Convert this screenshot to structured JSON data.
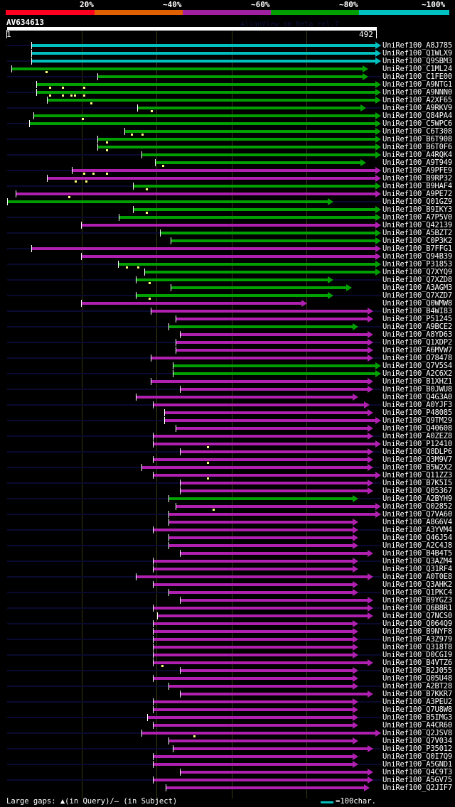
{
  "identity_scale": {
    "labels": [
      "20%",
      "~40%",
      "~60%",
      "~80%",
      "~100%"
    ],
    "colors": [
      "#ff0020",
      "#e06000",
      "#a020a0",
      "#00a000",
      "#00c0c0"
    ]
  },
  "query": {
    "name": "AV634613",
    "start_label": "1",
    "end_label": "492",
    "length": 492
  },
  "credit": "AlignView.pm Beta rel.7",
  "color_map": {
    "c": "#00c0c0",
    "g": "#00a000",
    "m": "#b020b0"
  },
  "hits": [
    {
      "id": "UniRef100_A8J785",
      "s": 33,
      "e": 492,
      "c": "c",
      "L": 1,
      "R": 1
    },
    {
      "id": "UniRef100_Q1WLX9",
      "s": 33,
      "e": 492,
      "c": "c",
      "L": 0,
      "R": 1
    },
    {
      "id": "UniRef100_Q9SBM3",
      "s": 33,
      "e": 492,
      "c": "c",
      "L": 1,
      "R": 1
    },
    {
      "id": "UniRef100_C1ML24",
      "s": 7,
      "e": 475,
      "c": "g",
      "L": 0,
      "R": 0,
      "gaps": [
        53
      ]
    },
    {
      "id": "UniRef100_C1FE00",
      "s": 121,
      "e": 475,
      "c": "g",
      "L": 1,
      "R": 1
    },
    {
      "id": "UniRef100_A9NTG1",
      "s": 40,
      "e": 492,
      "c": "g",
      "L": 0,
      "R": 0,
      "gaps": [
        58,
        75,
        103
      ]
    },
    {
      "id": "UniRef100_A9NNN0",
      "s": 40,
      "e": 492,
      "c": "g",
      "L": 1,
      "R": 1,
      "gaps": [
        58,
        75,
        86,
        91,
        103
      ]
    },
    {
      "id": "UniRef100_A2XF65",
      "s": 54,
      "e": 492,
      "c": "g",
      "L": 0,
      "R": 0,
      "gaps": [
        113
      ]
    },
    {
      "id": "UniRef100_A9RKV9",
      "s": 174,
      "e": 472,
      "c": "g",
      "L": 1,
      "R": 1,
      "gaps": [
        193
      ]
    },
    {
      "id": "UniRef100_Q84PA4",
      "s": 36,
      "e": 492,
      "c": "g",
      "L": 0,
      "R": 0,
      "gaps": [
        101
      ]
    },
    {
      "id": "UniRef100_C5WPC6",
      "s": 30,
      "e": 492,
      "c": "g",
      "L": 1,
      "R": 1
    },
    {
      "id": "UniRef100_C6T308",
      "s": 157,
      "e": 492,
      "c": "g",
      "L": 0,
      "R": 0,
      "gaps": [
        167,
        181
      ]
    },
    {
      "id": "UniRef100_B6T908",
      "s": 121,
      "e": 492,
      "c": "g",
      "L": 1,
      "R": 1,
      "gaps": [
        133
      ]
    },
    {
      "id": "UniRef100_B6T0F6",
      "s": 121,
      "e": 492,
      "c": "g",
      "L": 0,
      "R": 0,
      "gaps": [
        133
      ]
    },
    {
      "id": "UniRef100_A4RQK4",
      "s": 180,
      "e": 492,
      "c": "g",
      "L": 1,
      "R": 1
    },
    {
      "id": "UniRef100_A9T949",
      "s": 198,
      "e": 472,
      "c": "g",
      "L": 0,
      "R": 0,
      "gaps": [
        208
      ]
    },
    {
      "id": "UniRef100_A9PFE9",
      "s": 87,
      "e": 492,
      "c": "m",
      "L": 1,
      "R": 1,
      "gaps": [
        103,
        115,
        133
      ]
    },
    {
      "id": "UniRef100_B9RP32",
      "s": 54,
      "e": 492,
      "c": "m",
      "L": 0,
      "R": 0,
      "gaps": [
        92,
        106
      ]
    },
    {
      "id": "UniRef100_B9HAF4",
      "s": 168,
      "e": 492,
      "c": "g",
      "L": 1,
      "R": 1,
      "gaps": [
        186
      ]
    },
    {
      "id": "UniRef100_A9PE72",
      "s": 12,
      "e": 492,
      "c": "m",
      "L": 0,
      "R": 0,
      "gaps": [
        83
      ]
    },
    {
      "id": "UniRef100_Q01GZ9",
      "s": 1,
      "e": 429,
      "c": "g",
      "L": 0,
      "R": 1
    },
    {
      "id": "UniRef100_B9IKY3",
      "s": 168,
      "e": 492,
      "c": "g",
      "L": 0,
      "R": 0,
      "gaps": [
        186
      ]
    },
    {
      "id": "UniRef100_A7P5V0",
      "s": 150,
      "e": 492,
      "c": "g",
      "L": 1,
      "R": 1
    },
    {
      "id": "UniRef100_Q42139",
      "s": 99,
      "e": 492,
      "c": "m",
      "L": 0,
      "R": 0
    },
    {
      "id": "UniRef100_A5BZT2",
      "s": 204,
      "e": 492,
      "c": "g",
      "L": 1,
      "R": 1
    },
    {
      "id": "UniRef100_C0P3K2",
      "s": 219,
      "e": 492,
      "c": "g",
      "L": 0,
      "R": 0
    },
    {
      "id": "UniRef100_B7FFG1",
      "s": 33,
      "e": 492,
      "c": "m",
      "L": 1,
      "R": 1
    },
    {
      "id": "UniRef100_Q94B39",
      "s": 99,
      "e": 492,
      "c": "m",
      "L": 0,
      "R": 0
    },
    {
      "id": "UniRef100_P31853",
      "s": 149,
      "e": 492,
      "c": "g",
      "L": 1,
      "R": 1,
      "gaps": [
        160,
        175
      ]
    },
    {
      "id": "UniRef100_Q7XYQ9",
      "s": 184,
      "e": 492,
      "c": "g",
      "L": 0,
      "R": 0
    },
    {
      "id": "UniRef100_Q7XZD8",
      "s": 172,
      "e": 429,
      "c": "g",
      "L": 1,
      "R": 1,
      "gaps": [
        190
      ]
    },
    {
      "id": "UniRef100_A3AGM3",
      "s": 219,
      "e": 453,
      "c": "g",
      "L": 0,
      "R": 0
    },
    {
      "id": "UniRef100_Q7XZD7",
      "s": 172,
      "e": 429,
      "c": "g",
      "L": 1,
      "R": 1,
      "gaps": [
        190
      ]
    },
    {
      "id": "UniRef100_Q0WMW8",
      "s": 99,
      "e": 394,
      "c": "m",
      "L": 0,
      "R": 0
    },
    {
      "id": "UniRef100_B4WI83",
      "s": 192,
      "e": 482,
      "c": "m",
      "L": 1,
      "R": 1
    },
    {
      "id": "UniRef100_P51245",
      "s": 225,
      "e": 482,
      "c": "m",
      "L": 0,
      "R": 0
    },
    {
      "id": "UniRef100_A9BCE2",
      "s": 216,
      "e": 462,
      "c": "g",
      "L": 1,
      "R": 1
    },
    {
      "id": "UniRef100_A8YD63",
      "s": 231,
      "e": 482,
      "c": "m",
      "L": 0,
      "R": 0
    },
    {
      "id": "UniRef100_Q1XDP2",
      "s": 225,
      "e": 482,
      "c": "m",
      "L": 1,
      "R": 1
    },
    {
      "id": "UniRef100_A6MVW7",
      "s": 225,
      "e": 482,
      "c": "m",
      "L": 0,
      "R": 0
    },
    {
      "id": "UniRef100_O78478",
      "s": 192,
      "e": 482,
      "c": "m",
      "L": 1,
      "R": 1
    },
    {
      "id": "UniRef100_Q7V5S4",
      "s": 221,
      "e": 492,
      "c": "g",
      "L": 0,
      "R": 0
    },
    {
      "id": "UniRef100_A2C6X2",
      "s": 221,
      "e": 492,
      "c": "g",
      "L": 1,
      "R": 1
    },
    {
      "id": "UniRef100_B1XHZ1",
      "s": 192,
      "e": 482,
      "c": "m",
      "L": 0,
      "R": 0
    },
    {
      "id": "UniRef100_B0JWU8",
      "s": 231,
      "e": 482,
      "c": "m",
      "L": 1,
      "R": 1
    },
    {
      "id": "UniRef100_Q4G3A0",
      "s": 172,
      "e": 462,
      "c": "m",
      "L": 0,
      "R": 0
    },
    {
      "id": "UniRef100_A0YJF3",
      "s": 195,
      "e": 477,
      "c": "m",
      "L": 1,
      "R": 1
    },
    {
      "id": "UniRef100_P48085",
      "s": 210,
      "e": 482,
      "c": "m",
      "L": 0,
      "R": 0
    },
    {
      "id": "UniRef100_Q9TM29",
      "s": 210,
      "e": 492,
      "c": "m",
      "L": 1,
      "R": 1
    },
    {
      "id": "UniRef100_Q40608",
      "s": 225,
      "e": 482,
      "c": "m",
      "L": 0,
      "R": 0
    },
    {
      "id": "UniRef100_A0ZEZ8",
      "s": 195,
      "e": 482,
      "c": "m",
      "L": 1,
      "R": 1
    },
    {
      "id": "UniRef100_P12410",
      "s": 195,
      "e": 492,
      "c": "m",
      "L": 0,
      "R": 0,
      "gaps": [
        268
      ]
    },
    {
      "id": "UniRef100_Q8DLP6",
      "s": 231,
      "e": 482,
      "c": "m",
      "L": 1,
      "R": 1
    },
    {
      "id": "UniRef100_Q3M9V7",
      "s": 195,
      "e": 482,
      "c": "m",
      "L": 0,
      "R": 0,
      "gaps": [
        268
      ]
    },
    {
      "id": "UniRef100_B5W2X2",
      "s": 180,
      "e": 482,
      "c": "m",
      "L": 1,
      "R": 1
    },
    {
      "id": "UniRef100_Q11ZZ3",
      "s": 195,
      "e": 492,
      "c": "m",
      "L": 0,
      "R": 0,
      "gaps": [
        268
      ]
    },
    {
      "id": "UniRef100_B7K5I5",
      "s": 231,
      "e": 482,
      "c": "m",
      "L": 1,
      "R": 1
    },
    {
      "id": "UniRef100_Q05367",
      "s": 231,
      "e": 482,
      "c": "m",
      "L": 0,
      "R": 0
    },
    {
      "id": "UniRef100_A2BYH9",
      "s": 216,
      "e": 462,
      "c": "g",
      "L": 1,
      "R": 1
    },
    {
      "id": "UniRef100_Q02852",
      "s": 225,
      "e": 492,
      "c": "m",
      "L": 0,
      "R": 0,
      "gaps": [
        275
      ]
    },
    {
      "id": "UniRef100_Q7VA60",
      "s": 216,
      "e": 492,
      "c": "m",
      "L": 1,
      "R": 1
    },
    {
      "id": "UniRef100_A8G6V4",
      "s": 216,
      "e": 462,
      "c": "m",
      "L": 0,
      "R": 0
    },
    {
      "id": "UniRef100_A3YVM4",
      "s": 195,
      "e": 462,
      "c": "m",
      "L": 1,
      "R": 1
    },
    {
      "id": "UniRef100_Q46J54",
      "s": 216,
      "e": 462,
      "c": "m",
      "L": 0,
      "R": 0
    },
    {
      "id": "UniRef100_A2C4J8",
      "s": 216,
      "e": 462,
      "c": "m",
      "L": 1,
      "R": 1
    },
    {
      "id": "UniRef100_B4B4T5",
      "s": 231,
      "e": 482,
      "c": "m",
      "L": 0,
      "R": 0
    },
    {
      "id": "UniRef100_Q3AZM4",
      "s": 195,
      "e": 462,
      "c": "m",
      "L": 1,
      "R": 1
    },
    {
      "id": "UniRef100_Q31RF4",
      "s": 195,
      "e": 462,
      "c": "m",
      "L": 0,
      "R": 0
    },
    {
      "id": "UniRef100_A0T0E8",
      "s": 172,
      "e": 482,
      "c": "m",
      "L": 1,
      "R": 1
    },
    {
      "id": "UniRef100_Q3AHK2",
      "s": 195,
      "e": 462,
      "c": "m",
      "L": 0,
      "R": 0
    },
    {
      "id": "UniRef100_Q1PKC4",
      "s": 216,
      "e": 462,
      "c": "m",
      "L": 1,
      "R": 1
    },
    {
      "id": "UniRef100_B9YGZ3",
      "s": 231,
      "e": 482,
      "c": "m",
      "L": 0,
      "R": 0
    },
    {
      "id": "UniRef100_Q6B8R1",
      "s": 195,
      "e": 482,
      "c": "m",
      "L": 1,
      "R": 1
    },
    {
      "id": "UniRef100_Q7NCS0",
      "s": 201,
      "e": 482,
      "c": "m",
      "L": 0,
      "R": 0
    },
    {
      "id": "UniRef100_Q064Q9",
      "s": 195,
      "e": 462,
      "c": "m",
      "L": 1,
      "R": 1
    },
    {
      "id": "UniRef100_B9NYF8",
      "s": 195,
      "e": 462,
      "c": "m",
      "L": 0,
      "R": 0
    },
    {
      "id": "UniRef100_A3Z979",
      "s": 195,
      "e": 462,
      "c": "m",
      "L": 1,
      "R": 1
    },
    {
      "id": "UniRef100_Q318T8",
      "s": 195,
      "e": 462,
      "c": "m",
      "L": 0,
      "R": 0
    },
    {
      "id": "UniRef100_D0CGI9",
      "s": 195,
      "e": 462,
      "c": "m",
      "L": 1,
      "R": 1
    },
    {
      "id": "UniRef100_B4VTZ6",
      "s": 195,
      "e": 482,
      "c": "m",
      "L": 0,
      "R": 0,
      "gaps": [
        207
      ]
    },
    {
      "id": "UniRef100_B2J055",
      "s": 231,
      "e": 462,
      "c": "m",
      "L": 1,
      "R": 1
    },
    {
      "id": "UniRef100_Q05U48",
      "s": 195,
      "e": 462,
      "c": "m",
      "L": 0,
      "R": 0
    },
    {
      "id": "UniRef100_A2BT28",
      "s": 216,
      "e": 462,
      "c": "m",
      "L": 1,
      "R": 1
    },
    {
      "id": "UniRef100_B7KKR7",
      "s": 231,
      "e": 482,
      "c": "m",
      "L": 0,
      "R": 0
    },
    {
      "id": "UniRef100_A3PEU2",
      "s": 195,
      "e": 462,
      "c": "m",
      "L": 1,
      "R": 1
    },
    {
      "id": "UniRef100_Q7U8W8",
      "s": 195,
      "e": 462,
      "c": "m",
      "L": 0,
      "R": 0
    },
    {
      "id": "UniRef100_B5IMG3",
      "s": 187,
      "e": 462,
      "c": "m",
      "L": 1,
      "R": 1
    },
    {
      "id": "UniRef100_A4CR60",
      "s": 195,
      "e": 462,
      "c": "m",
      "L": 0,
      "R": 0
    },
    {
      "id": "UniRef100_Q2JSV8",
      "s": 180,
      "e": 492,
      "c": "m",
      "L": 1,
      "R": 1,
      "gaps": [
        250
      ]
    },
    {
      "id": "UniRef100_Q7V034",
      "s": 216,
      "e": 462,
      "c": "m",
      "L": 0,
      "R": 0
    },
    {
      "id": "UniRef100_P35012",
      "s": 221,
      "e": 482,
      "c": "m",
      "L": 1,
      "R": 1
    },
    {
      "id": "UniRef100_Q0I7Q9",
      "s": 195,
      "e": 462,
      "c": "m",
      "L": 0,
      "R": 0
    },
    {
      "id": "UniRef100_A5GND1",
      "s": 195,
      "e": 462,
      "c": "m",
      "L": 1,
      "R": 1
    },
    {
      "id": "UniRef100_Q4C9T3",
      "s": 231,
      "e": 482,
      "c": "m",
      "L": 0,
      "R": 0
    },
    {
      "id": "UniRef100_A5GV75",
      "s": 195,
      "e": 482,
      "c": "m",
      "L": 1,
      "R": 1
    },
    {
      "id": "UniRef100_Q2JIF7",
      "s": 212,
      "e": 477,
      "c": "m",
      "L": 0,
      "R": 0
    }
  ],
  "footer": {
    "gaps_text": "Large gaps: ▲(in Query)/— (in Subject)",
    "scale_text": "=100char."
  }
}
